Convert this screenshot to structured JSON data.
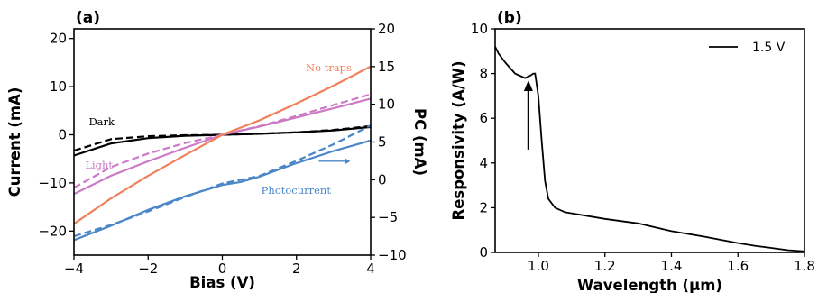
{
  "chart_data": [
    {
      "panel": "(a)",
      "type": "line",
      "xlabel": "Bias (V)",
      "ylabel": "Current (mA)",
      "y2label": "PC (mA)",
      "xlim": [
        -4,
        4
      ],
      "ylim": [
        -25,
        22
      ],
      "y2lim": [
        -10,
        20
      ],
      "xticks": [
        "-4",
        "-2",
        "0",
        "2",
        "4"
      ],
      "yticks": [
        "-20",
        "-10",
        "0",
        "10",
        "20"
      ],
      "y2ticks": [
        "-10",
        "-5",
        "0",
        "5",
        "10",
        "15",
        "20"
      ],
      "annotations": {
        "dark": "Dark",
        "light": "Light",
        "no_traps": "No traps",
        "photocurrent": "Photocurrent"
      },
      "series": [
        {
          "color": "#000000",
          "style": "solid",
          "axis": "left",
          "x": [
            -4,
            -3,
            -2,
            -1,
            0,
            1,
            2,
            3,
            4
          ],
          "y": [
            -4.3,
            -1.8,
            -0.7,
            -0.2,
            0,
            0.2,
            0.5,
            0.9,
            1.6
          ]
        },
        {
          "color": "#000000",
          "style": "dashed",
          "axis": "left",
          "x": [
            -4,
            -3,
            -2,
            -1,
            0,
            1,
            2,
            3,
            4
          ],
          "y": [
            -3.3,
            -0.9,
            -0.3,
            -0.1,
            0,
            0.2,
            0.5,
            1.0,
            1.8
          ]
        },
        {
          "color": "#cc79c6",
          "style": "solid",
          "axis": "left",
          "x": [
            -4,
            -3,
            -2,
            -1,
            0,
            1,
            2,
            3,
            4
          ],
          "y": [
            -12.3,
            -8.5,
            -5.5,
            -2.7,
            0,
            1.7,
            3.6,
            5.5,
            7.5
          ]
        },
        {
          "color": "#cc79c6",
          "style": "dashed",
          "axis": "left",
          "x": [
            -4,
            -3,
            -2,
            -1,
            0,
            1,
            2,
            3,
            4
          ],
          "y": [
            -11.0,
            -6.7,
            -3.9,
            -1.7,
            0,
            1.8,
            3.9,
            6.2,
            8.4
          ]
        },
        {
          "color": "#f0805a",
          "style": "solid",
          "axis": "left",
          "x": [
            -4,
            -3,
            -2,
            -1,
            0,
            1,
            2,
            3,
            4
          ],
          "y": [
            -18.5,
            -13.2,
            -8.5,
            -4.2,
            0,
            3.0,
            6.5,
            10.2,
            14.2
          ]
        },
        {
          "color": "#4a86c8",
          "style": "solid",
          "axis": "right",
          "x": [
            -4,
            -3,
            -2,
            -1,
            0,
            0.5,
            1,
            2,
            3,
            4
          ],
          "y": [
            -8.0,
            -6.1,
            -4.0,
            -2.2,
            -0.7,
            -0.3,
            0.4,
            2.2,
            3.8,
            5.2
          ]
        },
        {
          "color": "#4a86c8",
          "style": "dashed",
          "axis": "right",
          "x": [
            -4,
            -3,
            -2,
            -1,
            0,
            1,
            2,
            3,
            4
          ],
          "y": [
            -7.5,
            -6.0,
            -4.2,
            -2.3,
            -0.5,
            0.5,
            2.5,
            4.7,
            7.2
          ]
        }
      ]
    },
    {
      "panel": "(b)",
      "type": "line",
      "xlabel": "Wavelength (μm)",
      "ylabel": "Responsivity (A/W)",
      "xlim": [
        0.87,
        1.8
      ],
      "ylim": [
        0,
        10
      ],
      "xticks": [
        "1.0",
        "1.2",
        "1.4",
        "1.6",
        "1.8"
      ],
      "yticks": [
        "0",
        "2",
        "4",
        "6",
        "8",
        "10"
      ],
      "legend": {
        "position": "top-right"
      },
      "series": [
        {
          "name": "1.5 V",
          "color": "#000000",
          "x": [
            0.87,
            0.88,
            0.9,
            0.93,
            0.96,
            0.975,
            0.985,
            0.99,
            1.0,
            1.01,
            1.02,
            1.03,
            1.05,
            1.08,
            1.1,
            1.2,
            1.3,
            1.4,
            1.5,
            1.6,
            1.65,
            1.7,
            1.75,
            1.8
          ],
          "y": [
            9.2,
            8.9,
            8.5,
            8.0,
            7.8,
            7.9,
            8.0,
            8.0,
            7.0,
            5.0,
            3.2,
            2.4,
            2.0,
            1.8,
            1.75,
            1.5,
            1.3,
            0.95,
            0.7,
            0.42,
            0.3,
            0.2,
            0.1,
            0.05
          ]
        }
      ],
      "annotation_arrow": {
        "x": 0.97,
        "y_from": 4.6,
        "y_to": 7.7
      }
    }
  ]
}
